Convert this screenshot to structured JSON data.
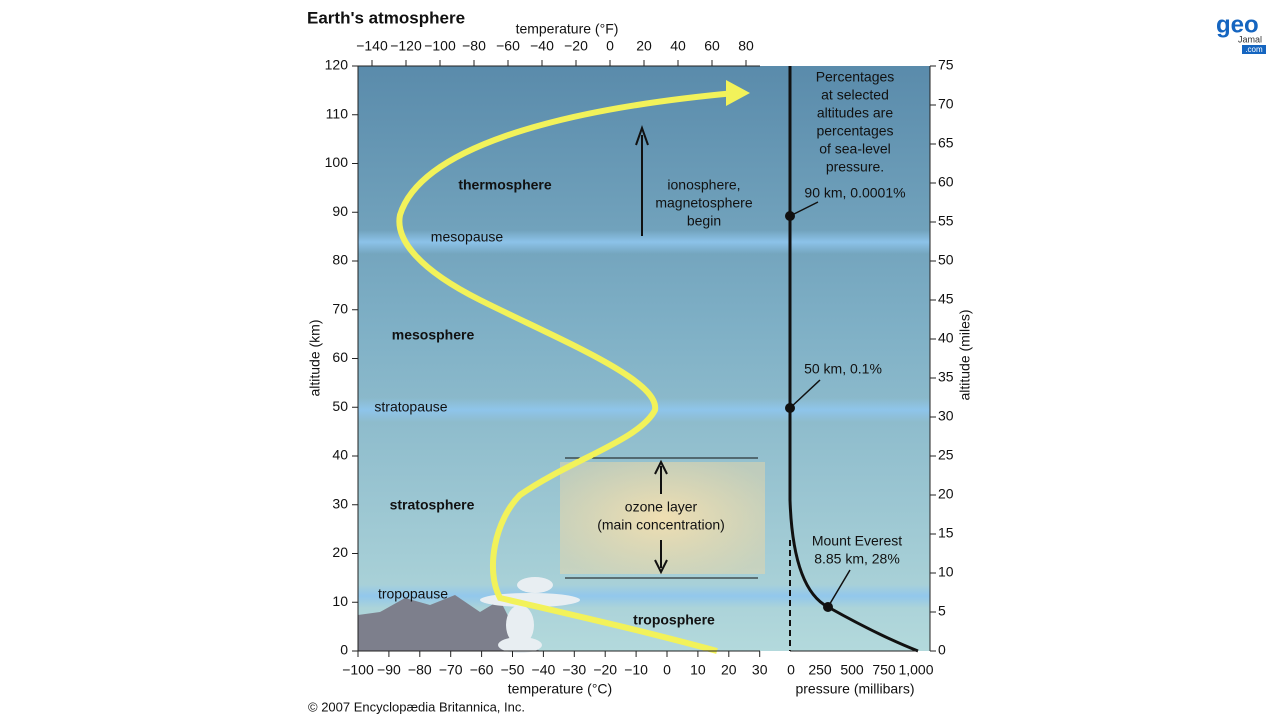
{
  "title": "Earth's atmosphere",
  "axes": {
    "top_title": "temperature (°F)",
    "top_ticks": [
      "−140",
      "−120",
      "−100",
      "−80",
      "−60",
      "−40",
      "−20",
      "0",
      "20",
      "40",
      "60",
      "80"
    ],
    "bottom_title": "temperature (°C)",
    "bottom_ticks": [
      "−100",
      "−90",
      "−80",
      "−70",
      "−60",
      "−50",
      "−40",
      "−30",
      "−20",
      "−10",
      "0",
      "10",
      "20",
      "30"
    ],
    "left_title": "altitude (km)",
    "left_ticks": [
      "0",
      "10",
      "20",
      "30",
      "40",
      "50",
      "60",
      "70",
      "80",
      "90",
      "100",
      "110",
      "120"
    ],
    "right_title": "altitude (miles)",
    "right_ticks": [
      "0",
      "5",
      "10",
      "15",
      "20",
      "25",
      "30",
      "35",
      "40",
      "45",
      "50",
      "55",
      "60",
      "65",
      "70",
      "75"
    ],
    "pressure_title": "pressure (millibars)",
    "pressure_ticks": [
      "0",
      "250",
      "500",
      "750",
      "1,000"
    ]
  },
  "layers": {
    "thermosphere": "thermosphere",
    "mesopause": "mesopause",
    "mesosphere": "mesosphere",
    "stratopause": "stratopause",
    "stratosphere": "stratosphere",
    "tropopause": "tropopause",
    "troposphere": "troposphere"
  },
  "annotations": {
    "ionosphere": [
      "ionosphere,",
      "magnetosphere",
      "begin"
    ],
    "ozone": [
      "ozone layer",
      "(main concentration)"
    ],
    "pressure_note": [
      "Percentages",
      "at selected",
      "altitudes are",
      "percentages",
      "of sea-level",
      "pressure."
    ],
    "km90": "90 km, 0.0001%",
    "km50": "50 km, 0.1%",
    "everest": [
      "Mount Everest",
      "8.85 km, 28%"
    ]
  },
  "copyright": "© 2007 Encyclopædia Britannica, Inc.",
  "logo": {
    "text": "geo",
    "sub": "Jamal",
    "domain": ".com"
  }
}
